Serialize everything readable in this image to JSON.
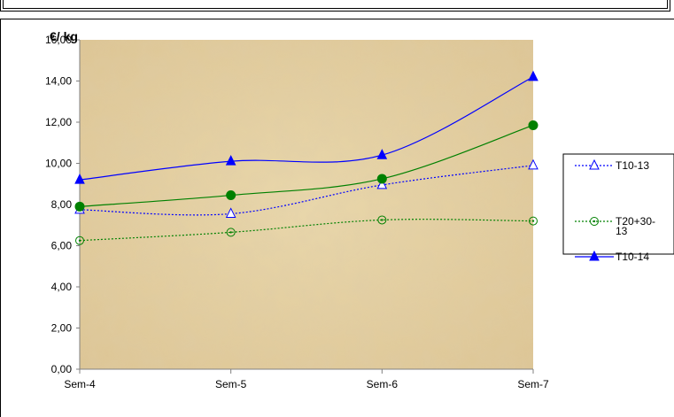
{
  "chart_data": {
    "type": "line",
    "ylabel": "€/ kg",
    "categories": [
      "Sem-4",
      "Sem-5",
      "Sem-6",
      "Sem-7"
    ],
    "ylim": [
      0,
      16
    ],
    "ytick_labels": [
      "0,00",
      "2,00",
      "4,00",
      "6,00",
      "8,00",
      "10,00",
      "12,00",
      "14,00",
      "16,00"
    ],
    "grid": false,
    "legend_placement": "right",
    "series": [
      {
        "name": "T10-13",
        "values": [
          7.75,
          7.55,
          8.95,
          9.9
        ],
        "color": "#0000ff",
        "marker": "open-triangle",
        "line": "dotted"
      },
      {
        "name": "T20+30-13",
        "values": [
          6.25,
          6.65,
          7.25,
          7.2
        ],
        "color": "#008000",
        "marker": "open-circle-dot",
        "line": "dotted"
      },
      {
        "name": "",
        "values": [
          7.9,
          8.45,
          9.25,
          11.85
        ],
        "color": "#008000",
        "marker": "filled-circle",
        "line": "solid"
      },
      {
        "name": "T10-14",
        "values": [
          9.2,
          10.1,
          10.4,
          14.2
        ],
        "color": "#0000ff",
        "marker": "filled-triangle",
        "line": "solid"
      }
    ],
    "legend_entries": [
      {
        "series": 0,
        "lines": [
          "T10-13"
        ]
      },
      {
        "series": 1,
        "lines": [
          "T20+30-",
          "13"
        ]
      },
      {
        "series": 3,
        "lines": [
          "T10-14"
        ]
      }
    ]
  }
}
